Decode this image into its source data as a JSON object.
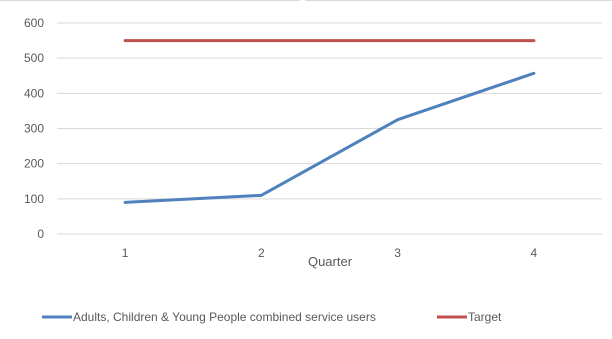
{
  "chart_data": {
    "type": "line",
    "categories": [
      "1",
      "2",
      "3",
      "4"
    ],
    "xlabel": "Quarter",
    "ylabel": "",
    "ylim": [
      0,
      600
    ],
    "yticks": [
      "0",
      "100",
      "200",
      "300",
      "400",
      "500",
      "600"
    ],
    "grid": true,
    "legend_position": "bottom",
    "series": [
      {
        "name": "Adults, Children & Young People combined service users",
        "values": [
          90,
          110,
          325,
          457
        ],
        "color": "#4f81bd"
      },
      {
        "name": "Target",
        "values": [
          550,
          550,
          550,
          550
        ],
        "color": "#c0504d"
      }
    ]
  }
}
